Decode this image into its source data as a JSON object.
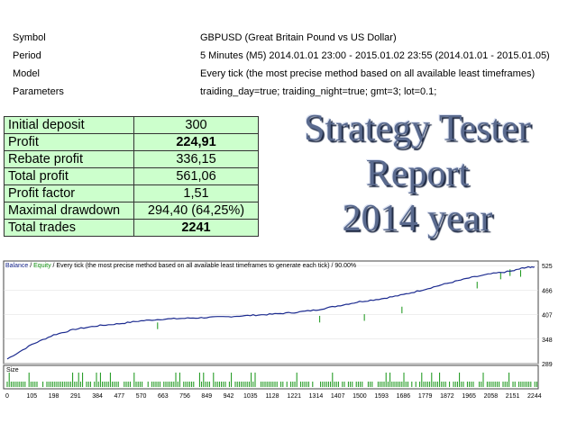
{
  "info": [
    {
      "label": "Symbol",
      "value": "GBPUSD (Great Britain Pound vs US Dollar)"
    },
    {
      "label": "Period",
      "value": "5 Minutes (M5) 2014.01.01 23:00 - 2015.01.02 23:55 (2014.01.01 - 2015.01.05)"
    },
    {
      "label": "Model",
      "value": "Every tick (the most precise method based on all available least timeframes)"
    },
    {
      "label": "Parameters",
      "value": "traiding_day=true; traiding_night=true; gmt=3; lot=0.1;"
    }
  ],
  "summary": [
    {
      "label": "Initial deposit",
      "value": "300"
    },
    {
      "label": "Profit",
      "value": "224,91"
    },
    {
      "label": "Rebate profit",
      "value": "336,15"
    },
    {
      "label": "Total profit",
      "value": "561,06"
    },
    {
      "label": "Profit factor",
      "value": "1,51"
    },
    {
      "label": "Maximal drawdown",
      "value": "294,40 (64,25%)"
    },
    {
      "label": "Total trades",
      "value": "2241"
    }
  ],
  "title": {
    "line1": "Strategy Tester",
    "line2": "Report",
    "line3": "2014 year"
  },
  "chart_legend": {
    "balance": "Balance",
    "sep": " / ",
    "equity": "Equity",
    "rest": " / Every tick (the most precise method based on all available least timeframes to generate each tick) / 90.00%"
  },
  "size_label": "Size",
  "chart_data": {
    "type": "line",
    "series": [
      {
        "name": "Balance",
        "color": "#1b2a8f",
        "x": [
          0,
          105,
          198,
          291,
          384,
          477,
          570,
          663,
          756,
          849,
          942,
          1035,
          1128,
          1221,
          1314,
          1407,
          1500,
          1593,
          1686,
          1779,
          1872,
          1965,
          2058,
          2151,
          2200,
          2244
        ],
        "y": [
          300,
          335,
          358,
          372,
          380,
          385,
          392,
          396,
          398,
          400,
          402,
          405,
          408,
          412,
          418,
          428,
          438,
          445,
          455,
          468,
          482,
          495,
          505,
          512,
          520,
          522
        ]
      },
      {
        "name": "Equity",
        "color": "#149414"
      }
    ],
    "yticks": [
      "525",
      "466",
      "407",
      "348",
      "289"
    ],
    "xticks": [
      "0",
      "105",
      "198",
      "291",
      "384",
      "477",
      "570",
      "663",
      "756",
      "849",
      "942",
      "1035",
      "1128",
      "1221",
      "1314",
      "1407",
      "1500",
      "1593",
      "1686",
      "1779",
      "1872",
      "1965",
      "2058",
      "2151",
      "2244"
    ],
    "xlim": [
      0,
      2260
    ],
    "ylim": [
      289,
      536
    ]
  }
}
